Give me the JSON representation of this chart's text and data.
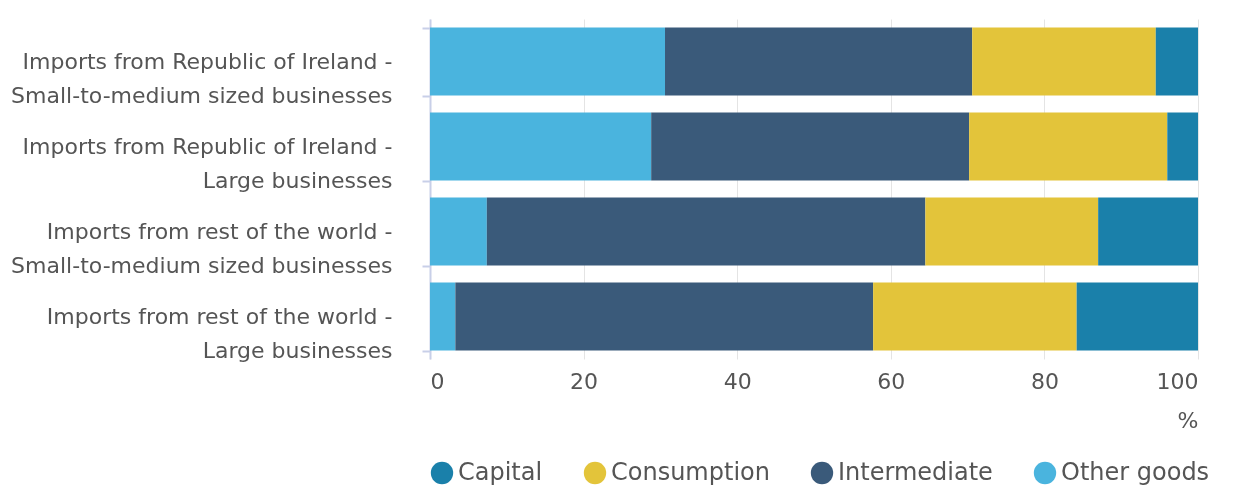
{
  "chart_data": {
    "type": "bar",
    "orientation": "horizontal",
    "stacked": true,
    "categories": [
      "Imports from Republic of Ireland - Small-to-medium sized businesses",
      "Imports from Republic of Ireland - Large businesses",
      "Imports from rest of the world - Small-to-medium sized businesses",
      "Imports from rest of the world - Large businesses"
    ],
    "series": [
      {
        "name": "Other goods",
        "color": "#4ab4de",
        "values": [
          30.6,
          28.8,
          7.4,
          3.3
        ]
      },
      {
        "name": "Intermediate",
        "color": "#3a5a7a",
        "values": [
          40.0,
          41.4,
          57.1,
          54.4
        ]
      },
      {
        "name": "Consumption",
        "color": "#e3c43a",
        "values": [
          23.9,
          25.8,
          22.5,
          26.5
        ]
      },
      {
        "name": "Capital",
        "color": "#1a80aa",
        "values": [
          5.5,
          4.0,
          13.0,
          15.8
        ]
      }
    ],
    "xlabel": "%",
    "xlim": [
      0,
      100
    ],
    "xticks": [
      0,
      20,
      40,
      60,
      80,
      100
    ],
    "grid": "x",
    "legend": "bottom"
  }
}
